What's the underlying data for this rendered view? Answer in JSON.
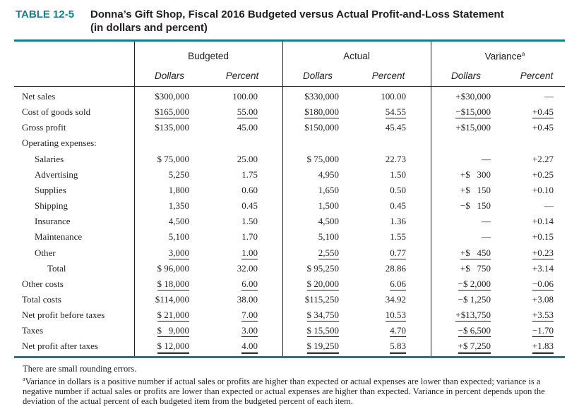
{
  "header": {
    "label": "TABLE 12-5",
    "title": "Donna’s Gift Shop, Fiscal 2016 Budgeted versus Actual Profit-and-Loss Statement",
    "subtitle": "(in dollars and percent)"
  },
  "table": {
    "groups": [
      "Budgeted",
      "Actual",
      "Variance"
    ],
    "group_note": "a",
    "columns": [
      "Dollars",
      "Percent",
      "Dollars",
      "Percent",
      "Dollars",
      "Percent"
    ],
    "rows": [
      {
        "label": "Net sales",
        "cells": [
          "$300,000",
          "100.00",
          "$330,000",
          "100.00",
          "+$30,000",
          "—"
        ]
      },
      {
        "label": "Cost of goods sold",
        "cells": [
          "$165,000",
          "55.00",
          "$180,000",
          "54.55",
          "−$15,000",
          "+0.45"
        ]
      },
      {
        "label": "Gross profit",
        "cells": [
          "$135,000",
          "45.00",
          "$150,000",
          "45.45",
          "+$15,000",
          "+0.45"
        ]
      },
      {
        "label": "Operating expenses:"
      },
      {
        "label": "Salaries",
        "cells": [
          "$ 75,000",
          "25.00",
          "$ 75,000",
          "22.73",
          "—",
          "+2.27"
        ]
      },
      {
        "label": "Advertising",
        "cells": [
          "5,250",
          "1.75",
          "4,950",
          "1.50",
          "+$   300",
          "+0.25"
        ]
      },
      {
        "label": "Supplies",
        "cells": [
          "1,800",
          "0.60",
          "1,650",
          "0.50",
          "+$   150",
          "+0.10"
        ]
      },
      {
        "label": "Shipping",
        "cells": [
          "1,350",
          "0.45",
          "1,500",
          "0.45",
          "−$   150",
          "—"
        ]
      },
      {
        "label": "Insurance",
        "cells": [
          "4,500",
          "1.50",
          "4,500",
          "1.36",
          "—",
          "+0.14"
        ]
      },
      {
        "label": "Maintenance",
        "cells": [
          "5,100",
          "1.70",
          "5,100",
          "1.55",
          "—",
          "+0.15"
        ]
      },
      {
        "label": "Other",
        "cells": [
          "3,000",
          "1.00",
          "2,550",
          "0.77",
          "+$   450",
          "+0.23"
        ]
      },
      {
        "label": "Total",
        "cells": [
          "$ 96,000",
          "32.00",
          "$ 95,250",
          "28.86",
          "+$   750",
          "+3.14"
        ]
      },
      {
        "label": "Other costs",
        "cells": [
          "$ 18,000",
          "6.00",
          "$ 20,000",
          "6.06",
          "−$ 2,000",
          "−0.06"
        ]
      },
      {
        "label": "Total costs",
        "cells": [
          "$114,000",
          "38.00",
          "$115,250",
          "34.92",
          "−$ 1,250",
          "+3.08"
        ]
      },
      {
        "label": "Net profit before taxes",
        "cells": [
          "$ 21,000",
          "7.00",
          "$ 34,750",
          "10.53",
          "+$13,750",
          "+3.53"
        ]
      },
      {
        "label": "Taxes",
        "cells": [
          "$   9,000",
          "3.00",
          "$ 15,500",
          "4.70",
          "−$ 6,500",
          "−1.70"
        ]
      },
      {
        "label": "Net profit after taxes",
        "cells": [
          "$ 12,000",
          "4.00",
          "$ 19,250",
          "5.83",
          "+$ 7,250",
          "+1.83"
        ]
      }
    ]
  },
  "footnotes": {
    "rounding": "There are small rounding errors.",
    "marker": "a",
    "note": "Variance in dollars is a positive number if actual sales or profits are higher than expected or actual expenses are lower than expected; variance is a negative number if actual sales or profits are lower than expected or actual expenses are higher than expected. Variance in percent depends upon the deviation of the actual percent of each budgeted item from the budgeted percent of each item."
  }
}
